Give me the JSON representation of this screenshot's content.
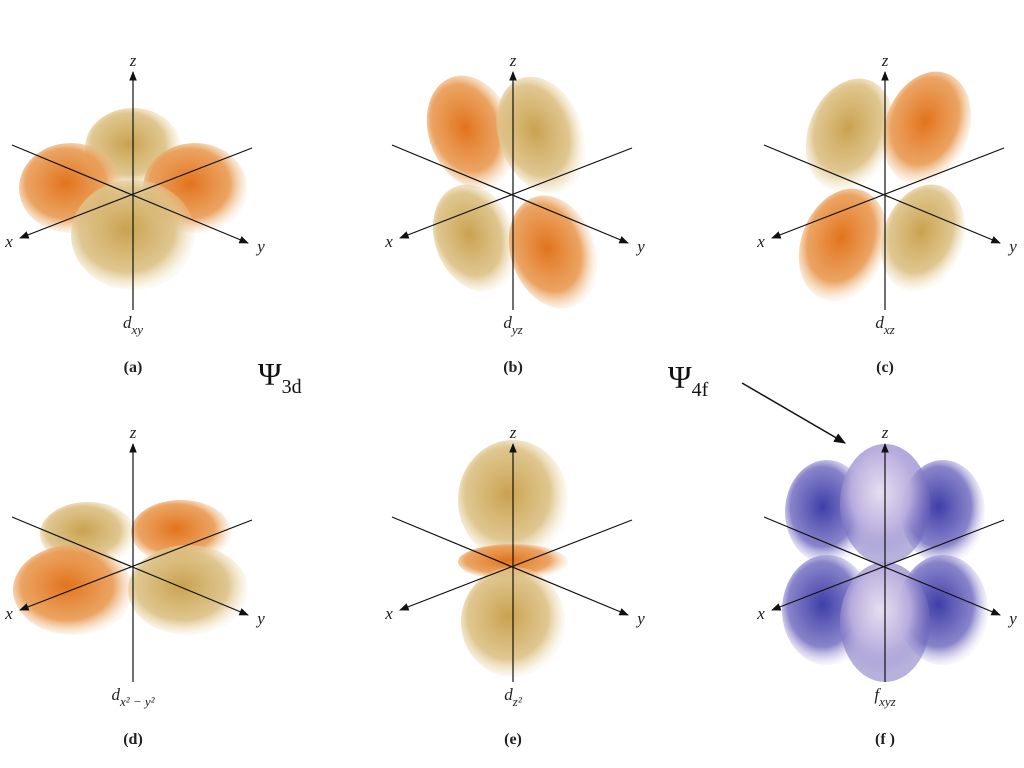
{
  "panels": [
    {
      "letter": "(a)",
      "orbital": {
        "symbol": "d",
        "subscript": "xy"
      },
      "axes": {
        "x": "x",
        "y": "y",
        "z": "z"
      }
    },
    {
      "letter": "(b)",
      "orbital": {
        "symbol": "d",
        "subscript": "yz"
      },
      "axes": {
        "x": "x",
        "y": "y",
        "z": "z"
      }
    },
    {
      "letter": "(c)",
      "orbital": {
        "symbol": "d",
        "subscript": "xz"
      },
      "axes": {
        "x": "x",
        "y": "y",
        "z": "z"
      }
    },
    {
      "letter": "(d)",
      "orbital": {
        "symbol": "d",
        "subscript": "x² − y²"
      },
      "axes": {
        "x": "x",
        "y": "y",
        "z": "z"
      }
    },
    {
      "letter": "(e)",
      "orbital": {
        "symbol": "d",
        "subscript": "z²"
      },
      "axes": {
        "x": "x",
        "y": "y",
        "z": "z"
      }
    },
    {
      "letter": "(f )",
      "orbital": {
        "symbol": "f",
        "subscript": "xyz"
      },
      "axes": {
        "x": "x",
        "y": "y",
        "z": "z"
      }
    }
  ],
  "annotations": [
    {
      "symbol": "Ψ",
      "subscript": "3d"
    },
    {
      "symbol": "Ψ",
      "subscript": "4f"
    }
  ]
}
